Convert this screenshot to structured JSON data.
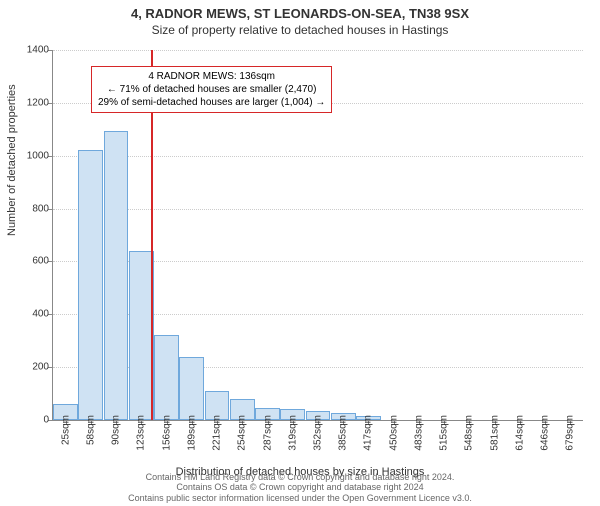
{
  "title_line1": "4, RADNOR MEWS, ST LEONARDS-ON-SEA, TN38 9SX",
  "title_line2": "Size of property relative to detached houses in Hastings",
  "ylabel": "Number of detached properties",
  "xlabel": "Distribution of detached houses by size in Hastings",
  "footer_line1": "Contains HM Land Registry data © Crown copyright and database right 2024.",
  "footer_line2": "Contains OS data © Crown copyright and database right 2024",
  "footer_line3": "Contains public sector information licensed under the Open Government Licence v3.0.",
  "chart": {
    "type": "histogram",
    "ymax": 1400,
    "ytick_step": 200,
    "yticks": [
      0,
      200,
      400,
      600,
      800,
      1000,
      1200,
      1400
    ],
    "xticks": [
      "25sqm",
      "58sqm",
      "90sqm",
      "123sqm",
      "156sqm",
      "189sqm",
      "221sqm",
      "254sqm",
      "287sqm",
      "319sqm",
      "352sqm",
      "385sqm",
      "417sqm",
      "450sqm",
      "483sqm",
      "515sqm",
      "548sqm",
      "581sqm",
      "614sqm",
      "646sqm",
      "679sqm"
    ],
    "bar_fill": "#cfe2f3",
    "bar_stroke": "#6fa8dc",
    "bar_count": 21,
    "values": [
      60,
      1020,
      1095,
      640,
      320,
      240,
      110,
      80,
      45,
      40,
      35,
      25,
      15,
      0,
      0,
      0,
      0,
      0,
      0,
      0,
      0
    ],
    "ref_line_index": 3.4,
    "ref_line_color": "#d62728",
    "ref_line_width": 2,
    "grid_color": "#cccccc"
  },
  "annotation": {
    "border_color": "#d62728",
    "line1": "4 RADNOR MEWS: 136sqm",
    "line2": "← 71% of detached houses are smaller (2,470)",
    "line3": "29% of semi-detached houses are larger (1,004) →"
  }
}
